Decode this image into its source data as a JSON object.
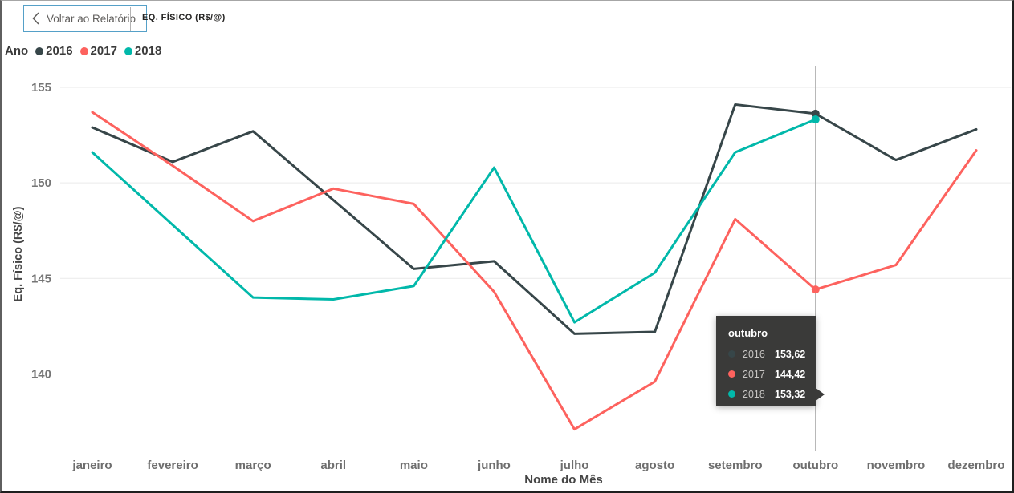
{
  "header": {
    "back_label": "Voltar ao Relatório",
    "title": "EQ. FÍSICO (R$/@)"
  },
  "legend": {
    "title": "Ano",
    "items": [
      {
        "label": "2016",
        "color": "#374649"
      },
      {
        "label": "2017",
        "color": "#FD625E"
      },
      {
        "label": "2018",
        "color": "#01B8AA"
      }
    ]
  },
  "chart_data": {
    "type": "line",
    "title": "EQ. FÍSICO (R$/@)",
    "xlabel": "Nome do Mês",
    "ylabel": "Eq. Físico (R$/@)",
    "grid": true,
    "legend_position": "top-left",
    "y_ticks": [
      155,
      150,
      145,
      140
    ],
    "ylim": [
      136,
      156
    ],
    "categories": [
      "janeiro",
      "fevereiro",
      "março",
      "abril",
      "maio",
      "junho",
      "julho",
      "agosto",
      "setembro",
      "outubro",
      "novembro",
      "dezembro"
    ],
    "series": [
      {
        "name": "2016",
        "color": "#374649",
        "values": [
          152.9,
          151.1,
          152.7,
          149.1,
          145.5,
          145.9,
          142.1,
          142.2,
          154.1,
          153.62,
          151.2,
          152.8
        ]
      },
      {
        "name": "2017",
        "color": "#FD625E",
        "values": [
          153.7,
          150.9,
          148.0,
          149.7,
          148.9,
          144.3,
          137.1,
          139.6,
          148.1,
          144.42,
          145.7,
          151.7
        ]
      },
      {
        "name": "2018",
        "color": "#01B8AA",
        "values": [
          151.6,
          147.8,
          144.0,
          143.9,
          144.6,
          150.8,
          142.7,
          145.3,
          151.6,
          153.32,
          null,
          null
        ]
      }
    ],
    "hover": {
      "category": "outubro",
      "index": 9
    }
  },
  "tooltip": {
    "title": "outubro",
    "rows": [
      {
        "label": "2016",
        "value": "153,62",
        "color": "#374649"
      },
      {
        "label": "2017",
        "value": "144,42",
        "color": "#FD625E"
      },
      {
        "label": "2018",
        "value": "153,32",
        "color": "#01B8AA"
      }
    ]
  },
  "colors": {
    "series_2016": "#374649",
    "series_2017": "#FD625E",
    "series_2018": "#01B8AA",
    "gridline": "#EAEAEA",
    "tick_label": "#757575",
    "axis_title": "#454545",
    "hover_line": "#B3B3B3",
    "tooltip_bg": "#3A3A39",
    "tooltip_label": "#C8C6C4",
    "tooltip_value": "#FFFFFF",
    "back_button_border": "#55A0C8",
    "back_button_text": "#605E5C"
  }
}
